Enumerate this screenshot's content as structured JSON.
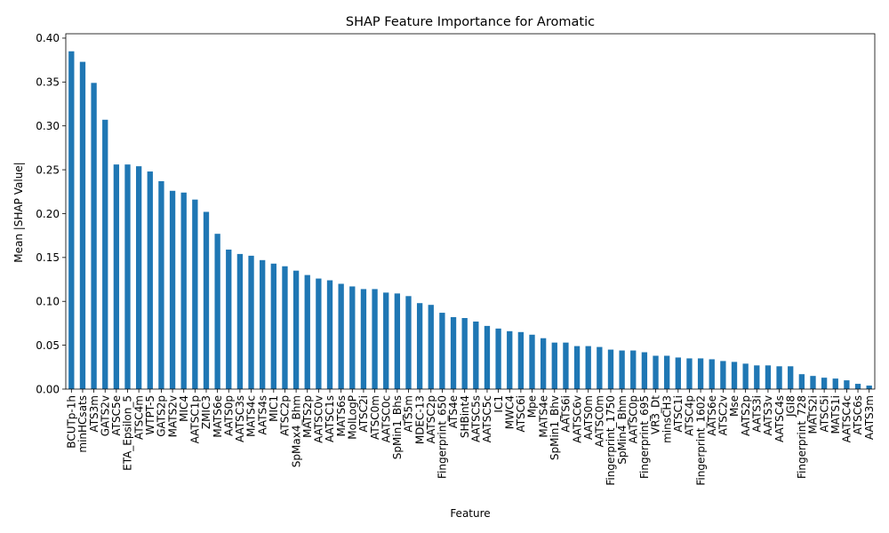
{
  "chart_data": {
    "type": "bar",
    "title": "SHAP Feature Importance for Aromatic",
    "xlabel": "Feature",
    "ylabel": "Mean |SHAP Value|",
    "ylim": [
      0,
      0.405
    ],
    "yticks": [
      "0.00",
      "0.05",
      "0.10",
      "0.15",
      "0.20",
      "0.25",
      "0.30",
      "0.35",
      "0.40"
    ],
    "grid": false,
    "legend": "none",
    "bar_color": "#1f77b4",
    "categories": [
      "BCUTp-1h",
      "minHCsats",
      "ATS3m",
      "GATS2v",
      "ATSC5e",
      "ETA_Epsilon_5",
      "ATSC4m",
      "WTPT-5",
      "GATS2p",
      "MATS2v",
      "MIC4",
      "AATSC1p",
      "ZMIC3",
      "MATS6e",
      "AATS0p",
      "AATSC3s",
      "MATS4c",
      "AATS4s",
      "MIC1",
      "ATSC2p",
      "SpMax4_Bhm",
      "MATS2p",
      "AATSC0v",
      "AATSC1s",
      "MATS6s",
      "MolLogP",
      "ATSC2i",
      "ATSC0m",
      "AATSC0c",
      "SpMin1_Bhs",
      "ATS5m",
      "MDEC-13",
      "AATSC2p",
      "Fingerprint_650",
      "ATS4e",
      "SHBint4",
      "AATSC5s",
      "AATSC5c",
      "IC1",
      "MWC4",
      "ATSC6i",
      "Mpe",
      "MATS4e",
      "SpMin1_Bhv",
      "AATS6i",
      "AATSC6v",
      "AATS0m",
      "AATSC0m",
      "Fingerprint_1750",
      "SpMin4_Bhm",
      "AATSC0p",
      "Fingerprint_695",
      "VR3_Dt",
      "minsCH3",
      "ATSC1i",
      "ATSC4p",
      "Fingerprint_1602",
      "AATS6e",
      "ATSC2v",
      "Mse",
      "AATS2p",
      "AATS3i",
      "AATS3v",
      "AATSC4s",
      "JGI8",
      "Fingerprint_728",
      "MATS2i",
      "ATSC5i",
      "MATS1i",
      "AATSC4c",
      "ATSC6s",
      "AATS3m"
    ],
    "values": [
      0.385,
      0.373,
      0.349,
      0.307,
      0.256,
      0.256,
      0.254,
      0.248,
      0.237,
      0.226,
      0.224,
      0.216,
      0.202,
      0.177,
      0.159,
      0.154,
      0.152,
      0.147,
      0.143,
      0.14,
      0.135,
      0.13,
      0.126,
      0.124,
      0.12,
      0.117,
      0.114,
      0.114,
      0.11,
      0.109,
      0.106,
      0.098,
      0.096,
      0.087,
      0.082,
      0.081,
      0.077,
      0.072,
      0.069,
      0.066,
      0.065,
      0.062,
      0.058,
      0.053,
      0.053,
      0.049,
      0.049,
      0.048,
      0.045,
      0.044,
      0.044,
      0.042,
      0.038,
      0.038,
      0.036,
      0.035,
      0.035,
      0.034,
      0.032,
      0.031,
      0.029,
      0.027,
      0.027,
      0.026,
      0.026,
      0.017,
      0.015,
      0.013,
      0.012,
      0.01,
      0.006,
      0.004
    ]
  }
}
